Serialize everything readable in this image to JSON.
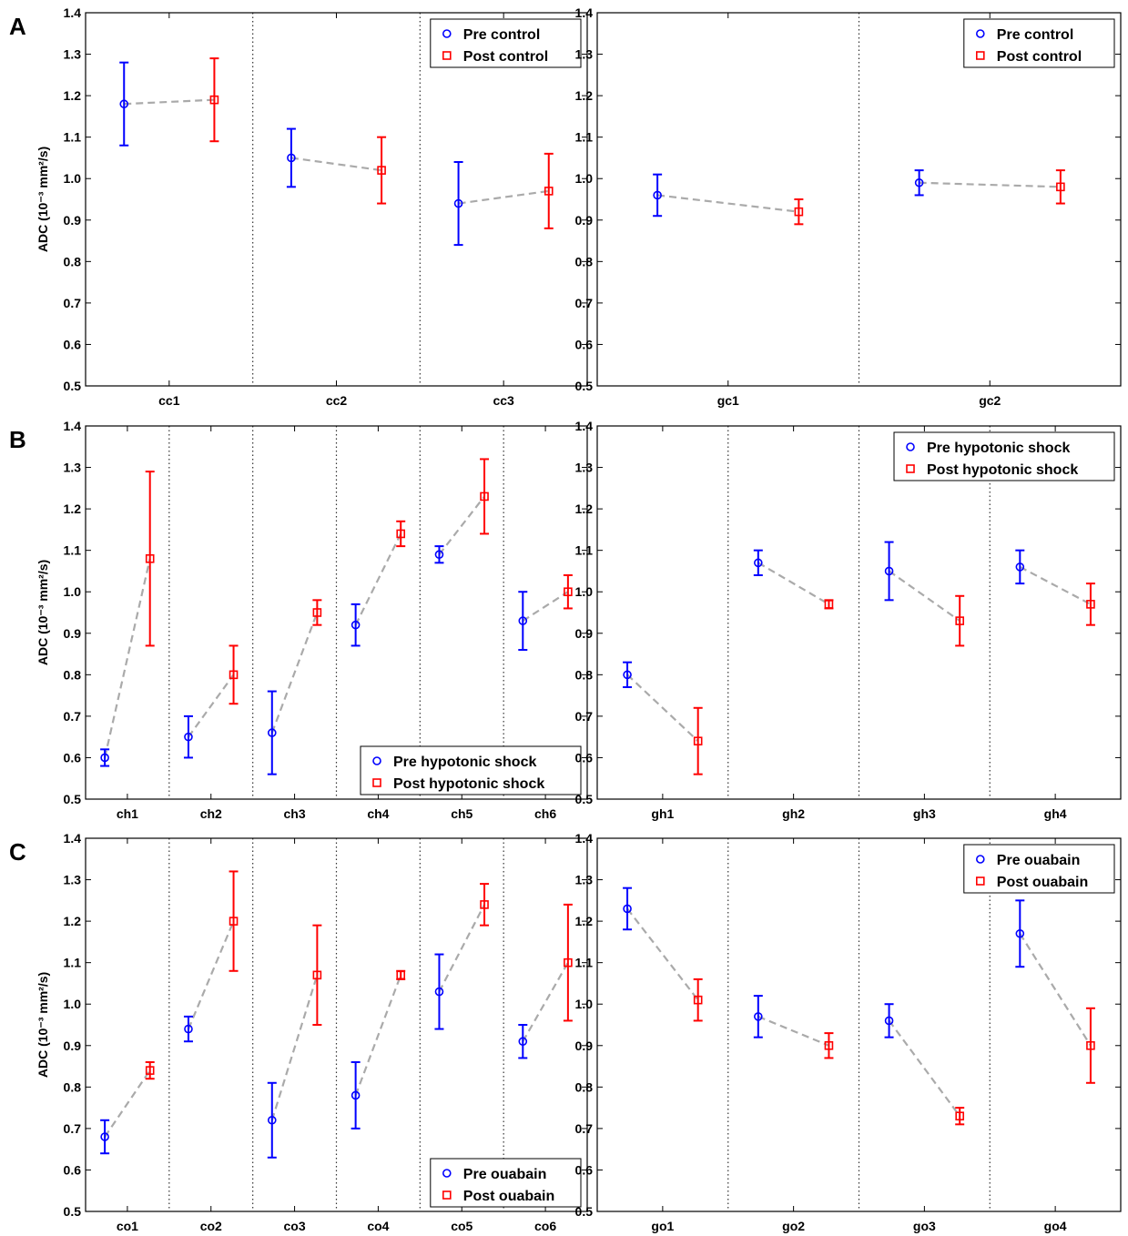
{
  "colors": {
    "pre": "#0000ff",
    "post": "#ff0000",
    "connector": "#aaaaaa"
  },
  "chart_data": [
    {
      "type": "scatter",
      "panel_label": "A",
      "ylabel": "ADC (10⁻³ mm²/s)",
      "ylim": [
        0.5,
        1.4
      ],
      "yticks": [
        "0.5",
        "0.6",
        "0.7",
        "0.8",
        "0.9",
        "1.0",
        "1.1",
        "1.2",
        "1.3",
        "1.4"
      ],
      "categories": [
        "cc1",
        "cc2",
        "cc3"
      ],
      "legend": {
        "position": "top-right",
        "pre": "Pre control",
        "post": "Post control"
      },
      "pre": [
        {
          "y": 1.18,
          "lo": 1.08,
          "hi": 1.28
        },
        {
          "y": 1.05,
          "lo": 0.98,
          "hi": 1.12
        },
        {
          "y": 0.94,
          "lo": 0.84,
          "hi": 1.04
        }
      ],
      "post": [
        {
          "y": 1.19,
          "lo": 1.09,
          "hi": 1.29
        },
        {
          "y": 1.02,
          "lo": 0.94,
          "hi": 1.1
        },
        {
          "y": 0.97,
          "lo": 0.88,
          "hi": 1.06
        }
      ]
    },
    {
      "type": "scatter",
      "ylim": [
        0.5,
        1.4
      ],
      "yticks": [
        "0.5",
        "0.6",
        "0.7",
        "0.8",
        "0.9",
        "1.0",
        "1.1",
        "1.2",
        "1.3",
        "1.4"
      ],
      "categories": [
        "gc1",
        "gc2"
      ],
      "legend": {
        "position": "top-right",
        "pre": "Pre control",
        "post": "Post control"
      },
      "pre": [
        {
          "y": 0.96,
          "lo": 0.91,
          "hi": 1.01
        },
        {
          "y": 0.99,
          "lo": 0.96,
          "hi": 1.02
        }
      ],
      "post": [
        {
          "y": 0.92,
          "lo": 0.89,
          "hi": 0.95
        },
        {
          "y": 0.98,
          "lo": 0.94,
          "hi": 1.02
        }
      ]
    },
    {
      "type": "scatter",
      "panel_label": "B",
      "ylabel": "ADC (10⁻³ mm²/s)",
      "ylim": [
        0.5,
        1.4
      ],
      "yticks": [
        "0.5",
        "0.6",
        "0.7",
        "0.8",
        "0.9",
        "1.0",
        "1.1",
        "1.2",
        "1.3",
        "1.4"
      ],
      "categories": [
        "ch1",
        "ch2",
        "ch3",
        "ch4",
        "ch5",
        "ch6"
      ],
      "legend": {
        "position": "bottom-right",
        "pre": "Pre hypotonic shock",
        "post": "Post hypotonic shock"
      },
      "pre": [
        {
          "y": 0.6,
          "lo": 0.58,
          "hi": 0.62
        },
        {
          "y": 0.65,
          "lo": 0.6,
          "hi": 0.7
        },
        {
          "y": 0.66,
          "lo": 0.56,
          "hi": 0.76
        },
        {
          "y": 0.92,
          "lo": 0.87,
          "hi": 0.97
        },
        {
          "y": 1.09,
          "lo": 1.07,
          "hi": 1.11
        },
        {
          "y": 0.93,
          "lo": 0.86,
          "hi": 1.0
        }
      ],
      "post": [
        {
          "y": 1.08,
          "lo": 0.87,
          "hi": 1.29
        },
        {
          "y": 0.8,
          "lo": 0.73,
          "hi": 0.87
        },
        {
          "y": 0.95,
          "lo": 0.92,
          "hi": 0.98
        },
        {
          "y": 1.14,
          "lo": 1.11,
          "hi": 1.17
        },
        {
          "y": 1.23,
          "lo": 1.14,
          "hi": 1.32
        },
        {
          "y": 1.0,
          "lo": 0.96,
          "hi": 1.04
        }
      ]
    },
    {
      "type": "scatter",
      "ylim": [
        0.5,
        1.4
      ],
      "yticks": [
        "0.5",
        "0.6",
        "0.7",
        "0.8",
        "0.9",
        "1.0",
        "1.1",
        "1.2",
        "1.3",
        "1.4"
      ],
      "categories": [
        "gh1",
        "gh2",
        "gh3",
        "gh4"
      ],
      "legend": {
        "position": "top-right",
        "pre": "Pre hypotonic shock",
        "post": "Post hypotonic shock"
      },
      "pre": [
        {
          "y": 0.8,
          "lo": 0.77,
          "hi": 0.83
        },
        {
          "y": 1.07,
          "lo": 1.04,
          "hi": 1.1
        },
        {
          "y": 1.05,
          "lo": 0.98,
          "hi": 1.12
        },
        {
          "y": 1.06,
          "lo": 1.02,
          "hi": 1.1
        }
      ],
      "post": [
        {
          "y": 0.64,
          "lo": 0.56,
          "hi": 0.72
        },
        {
          "y": 0.97,
          "lo": 0.96,
          "hi": 0.98
        },
        {
          "y": 0.93,
          "lo": 0.87,
          "hi": 0.99
        },
        {
          "y": 0.97,
          "lo": 0.92,
          "hi": 1.02
        }
      ]
    },
    {
      "type": "scatter",
      "panel_label": "C",
      "ylabel": "ADC (10⁻³ mm²/s)",
      "ylim": [
        0.5,
        1.4
      ],
      "yticks": [
        "0.5",
        "0.6",
        "0.7",
        "0.8",
        "0.9",
        "1.0",
        "1.1",
        "1.2",
        "1.3",
        "1.4"
      ],
      "categories": [
        "co1",
        "co2",
        "co3",
        "co4",
        "co5",
        "co6"
      ],
      "legend": {
        "position": "bottom-right",
        "pre": "Pre ouabain",
        "post": "Post ouabain"
      },
      "pre": [
        {
          "y": 0.68,
          "lo": 0.64,
          "hi": 0.72
        },
        {
          "y": 0.94,
          "lo": 0.91,
          "hi": 0.97
        },
        {
          "y": 0.72,
          "lo": 0.63,
          "hi": 0.81
        },
        {
          "y": 0.78,
          "lo": 0.7,
          "hi": 0.86
        },
        {
          "y": 1.03,
          "lo": 0.94,
          "hi": 1.12
        },
        {
          "y": 0.91,
          "lo": 0.87,
          "hi": 0.95
        }
      ],
      "post": [
        {
          "y": 0.84,
          "lo": 0.82,
          "hi": 0.86
        },
        {
          "y": 1.2,
          "lo": 1.08,
          "hi": 1.32
        },
        {
          "y": 1.07,
          "lo": 0.95,
          "hi": 1.19
        },
        {
          "y": 1.07,
          "lo": 1.06,
          "hi": 1.08
        },
        {
          "y": 1.24,
          "lo": 1.19,
          "hi": 1.29
        },
        {
          "y": 1.1,
          "lo": 0.96,
          "hi": 1.24
        }
      ]
    },
    {
      "type": "scatter",
      "ylim": [
        0.5,
        1.4
      ],
      "yticks": [
        "0.5",
        "0.6",
        "0.7",
        "0.8",
        "0.9",
        "1.0",
        "1.1",
        "1.2",
        "1.3",
        "1.4"
      ],
      "categories": [
        "go1",
        "go2",
        "go3",
        "go4"
      ],
      "legend": {
        "position": "top-right",
        "pre": "Pre ouabain",
        "post": "Post ouabain"
      },
      "pre": [
        {
          "y": 1.23,
          "lo": 1.18,
          "hi": 1.28
        },
        {
          "y": 0.97,
          "lo": 0.92,
          "hi": 1.02
        },
        {
          "y": 0.96,
          "lo": 0.92,
          "hi": 1.0
        },
        {
          "y": 1.17,
          "lo": 1.09,
          "hi": 1.25
        }
      ],
      "post": [
        {
          "y": 1.01,
          "lo": 0.96,
          "hi": 1.06
        },
        {
          "y": 0.9,
          "lo": 0.87,
          "hi": 0.93
        },
        {
          "y": 0.73,
          "lo": 0.71,
          "hi": 0.75
        },
        {
          "y": 0.9,
          "lo": 0.81,
          "hi": 0.99
        }
      ]
    }
  ]
}
